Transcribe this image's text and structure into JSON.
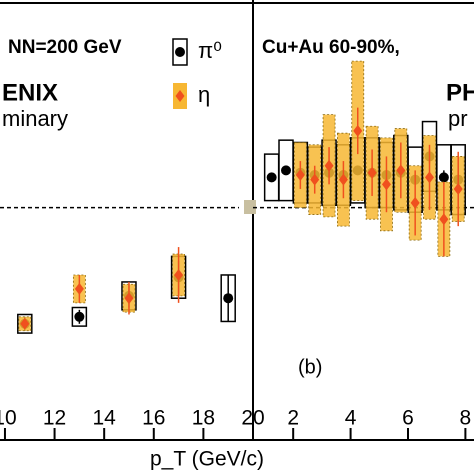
{
  "chart_data": [
    {
      "type": "scatter",
      "annotations": [
        "NN=200 GeV",
        "ENIX",
        "minary"
      ],
      "xlabel": "p_T (GeV/c)",
      "xlim": [
        9.8,
        20
      ],
      "xticks": [
        10,
        12,
        14,
        16,
        18,
        20
      ],
      "ylim": [
        0,
        1.85
      ],
      "hline": 1,
      "series": [
        {
          "name": "π⁰",
          "marker": "circle",
          "color": "#000000",
          "x": [
            10.8,
            13,
            15,
            17,
            19
          ],
          "values": [
            0.5,
            0.53,
            0.62,
            0.7,
            0.61
          ],
          "errors": [
            0.03,
            0.03,
            0.05,
            0.07,
            0.1
          ],
          "sys": [
            0.04,
            0.04,
            0.06,
            0.09,
            0.1
          ]
        },
        {
          "name": "η",
          "marker": "diamond",
          "color": "#f0501e",
          "band_color": "#f7b733",
          "x": [
            10.8,
            13,
            15,
            17
          ],
          "values": [
            0.5,
            0.65,
            0.61,
            0.71
          ],
          "errors": [
            0.02,
            0.06,
            0.07,
            0.12
          ],
          "sys": [
            0.03,
            0.06,
            0.06,
            0.09
          ]
        }
      ]
    },
    {
      "type": "scatter",
      "annotations": [
        "Cu+Au 60-90%,",
        "PH",
        "pr",
        "(b)"
      ],
      "xlim": [
        0.6,
        8.3
      ],
      "xticks": [
        2,
        4,
        6,
        8
      ],
      "ylim": [
        0,
        1.85
      ],
      "hline": 1,
      "series": [
        {
          "name": "π⁰",
          "marker": "circle",
          "color": "#000000",
          "x": [
            1.25,
            1.75,
            2.25,
            2.75,
            3.25,
            3.75,
            4.25,
            4.75,
            5.25,
            5.75,
            6.25,
            6.75,
            7.25,
            7.75
          ],
          "values": [
            1.13,
            1.16,
            1.15,
            1.14,
            1.15,
            1.14,
            1.16,
            1.15,
            1.14,
            1.15,
            1.12,
            1.22,
            1.13,
            1.12
          ],
          "errors": [
            0.01,
            0.01,
            0.01,
            0.01,
            0.01,
            0.01,
            0.01,
            0.01,
            0.02,
            0.02,
            0.02,
            0.03,
            0.03,
            0.04
          ],
          "sys": [
            0.1,
            0.13,
            0.13,
            0.12,
            0.14,
            0.13,
            0.14,
            0.15,
            0.14,
            0.16,
            0.14,
            0.15,
            0.14,
            0.15
          ]
        },
        {
          "name": "η",
          "marker": "diamond",
          "color": "#f0501e",
          "band_color": "#f7b733",
          "x": [
            2.25,
            2.75,
            3.25,
            3.75,
            4.25,
            4.75,
            5.25,
            5.75,
            6.25,
            6.75,
            7.25,
            7.75
          ],
          "values": [
            1.14,
            1.12,
            1.18,
            1.12,
            1.33,
            1.15,
            1.1,
            1.16,
            1.02,
            1.13,
            0.95,
            1.08
          ],
          "errors": [
            0.06,
            0.06,
            0.08,
            0.08,
            0.1,
            0.1,
            0.12,
            0.12,
            0.14,
            0.14,
            0.16,
            0.16
          ],
          "sys": [
            0.14,
            0.15,
            0.22,
            0.2,
            0.3,
            0.2,
            0.2,
            0.18,
            0.16,
            0.18,
            0.16,
            0.14
          ]
        }
      ]
    }
  ]
}
